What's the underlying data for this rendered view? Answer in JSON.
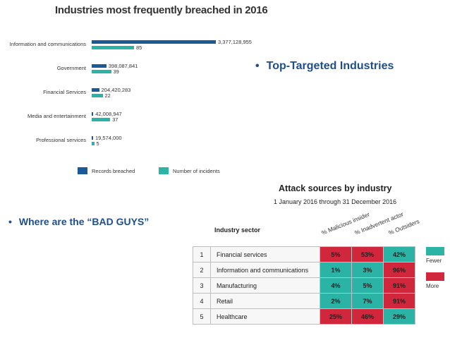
{
  "bar_chart": {
    "title": "Industries most frequently breached in 2016",
    "colors": {
      "records": "#1a5a96",
      "incidents": "#2bb3a5"
    },
    "legend": {
      "records": "Records breached",
      "incidents": "Number of incidents"
    }
  },
  "chart_data": [
    {
      "type": "bar",
      "orientation": "horizontal",
      "title": "Industries most frequently breached in 2016",
      "categories": [
        "Information and communications",
        "Government",
        "Financial Services",
        "Media and entertainment",
        "Professional services"
      ],
      "series": [
        {
          "name": "Records breached",
          "values": [
            3377128955,
            398087841,
            204420283,
            42008947,
            19574000
          ],
          "labels": [
            "3,377,128,955",
            "398,087,841",
            "204,420,283",
            "42,008,947",
            "19,574,000"
          ]
        },
        {
          "name": "Number of incidents",
          "values": [
            85,
            39,
            22,
            37,
            5
          ],
          "labels": [
            "85",
            "39",
            "22",
            "37",
            "5"
          ]
        }
      ],
      "xlabel": "",
      "ylabel": "",
      "legend_position": "bottom"
    },
    {
      "type": "heatmap",
      "title": "Attack sources by industry",
      "subtitle": "1 January 2016 through 31 December 2016",
      "row_header": "Industry sector",
      "columns": [
        "% Malicious insider",
        "% Inadvertent actor",
        "% Outsiders"
      ],
      "rows": [
        {
          "rank": "1",
          "sector": "Financial services",
          "values": [
            5,
            53,
            42
          ],
          "labels": [
            "5%",
            "53%",
            "42%"
          ],
          "levels": [
            "more",
            "more",
            "fewer"
          ]
        },
        {
          "rank": "2",
          "sector": "Information and communications",
          "values": [
            1,
            3,
            96
          ],
          "labels": [
            "1%",
            "3%",
            "96%"
          ],
          "levels": [
            "fewer",
            "fewer",
            "more"
          ]
        },
        {
          "rank": "3",
          "sector": "Manufacturing",
          "values": [
            4,
            5,
            91
          ],
          "labels": [
            "4%",
            "5%",
            "91%"
          ],
          "levels": [
            "fewer",
            "fewer",
            "more"
          ]
        },
        {
          "rank": "4",
          "sector": "Retail",
          "values": [
            2,
            7,
            91
          ],
          "labels": [
            "2%",
            "7%",
            "91%"
          ],
          "levels": [
            "fewer",
            "fewer",
            "more"
          ]
        },
        {
          "rank": "5",
          "sector": "Healthcare",
          "values": [
            25,
            46,
            29
          ],
          "labels": [
            "25%",
            "46%",
            "29%"
          ],
          "levels": [
            "more",
            "more",
            "fewer"
          ]
        }
      ],
      "legend": [
        {
          "key": "fewer",
          "label": "Fewer",
          "color": "#2bb3a5"
        },
        {
          "key": "more",
          "label": "More",
          "color": "#d0273d"
        }
      ]
    }
  ],
  "bullets": {
    "top_targeted": "Top-Targeted Industries",
    "bad_guys": "Where are the “BAD GUYS”",
    "dot": "•"
  }
}
